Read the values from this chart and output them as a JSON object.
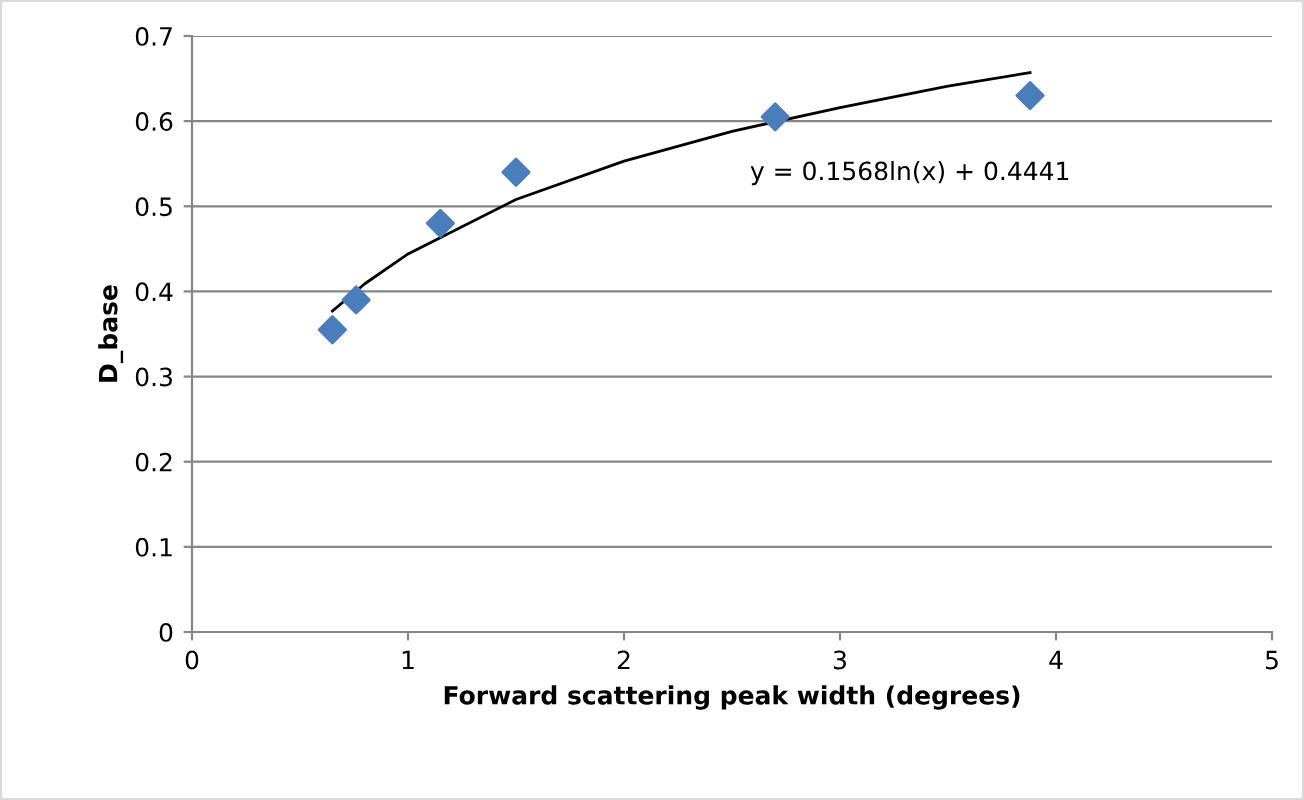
{
  "chart_data": {
    "type": "scatter",
    "xlabel": "Forward scattering peak width (degrees)",
    "ylabel": "D_base",
    "series": [
      {
        "color": "#4a7ebb",
        "marker": "diamond",
        "x": [
          0.65,
          0.76,
          1.15,
          1.5,
          2.7,
          3.88
        ],
        "values": [
          0.355,
          0.39,
          0.48,
          0.54,
          0.605,
          0.63
        ]
      },
      {
        "type": "line",
        "color": "#000000",
        "marker": "none",
        "line_style": "solid",
        "x": [
          0.65,
          0.8,
          1.0,
          1.5,
          2.0,
          2.5,
          3.0,
          3.5,
          3.88
        ],
        "values": [
          0.377,
          0.409,
          0.444,
          0.508,
          0.553,
          0.588,
          0.616,
          0.641,
          0.657
        ]
      }
    ],
    "annotations": [
      "y = 0.1568ln(x) + 0.4441"
    ],
    "xlim": [
      0,
      5
    ],
    "xticks": [
      0,
      1,
      2,
      3,
      4,
      5
    ],
    "ylim": [
      0,
      0.7
    ],
    "yticks": [
      0,
      0.1,
      0.2,
      0.3,
      0.4,
      0.5,
      0.6,
      0.7
    ],
    "grid": "y"
  }
}
